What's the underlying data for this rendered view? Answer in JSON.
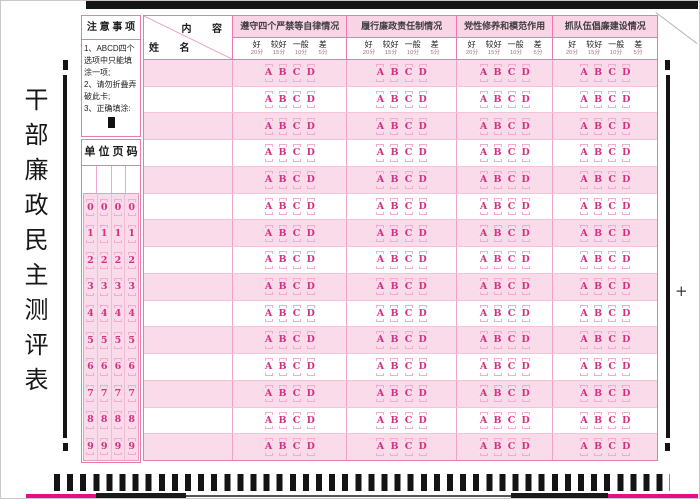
{
  "title": "干部廉政民主测评表",
  "notes": {
    "header": "注 意 事 项",
    "items": [
      "1、ABCD四个选项中只能填涂一项;",
      "2、请勿折叠弄破此卡;",
      "3、正确填涂:"
    ]
  },
  "unit_page": {
    "header": "单 位 页 码",
    "column_count": 4,
    "digits": [
      "0",
      "1",
      "2",
      "3",
      "4",
      "5",
      "6",
      "7",
      "8",
      "9"
    ]
  },
  "table": {
    "name_label": "姓  名",
    "content_label": "内  容",
    "row_count": 15,
    "options": [
      "A",
      "B",
      "C",
      "D"
    ],
    "ratings": [
      "好",
      "较好",
      "一般",
      "差"
    ],
    "scores": [
      "20分",
      "15分",
      "10分",
      "5分"
    ],
    "columns": [
      {
        "title": "遵守四个严禁等自律情况"
      },
      {
        "title": "履行廉政责任制情况"
      },
      {
        "title": "党性修养和模范作用"
      },
      {
        "title": "抓队伍倡廉建设情况"
      }
    ]
  },
  "corner": {
    "plus_label": "+"
  },
  "colors": {
    "accent_pink": "#e87ab2",
    "row_pink": "#fadbe9",
    "letter_magenta": "#d42f82",
    "registration_black": "#141414",
    "edge_magenta": "#e80b8a"
  }
}
